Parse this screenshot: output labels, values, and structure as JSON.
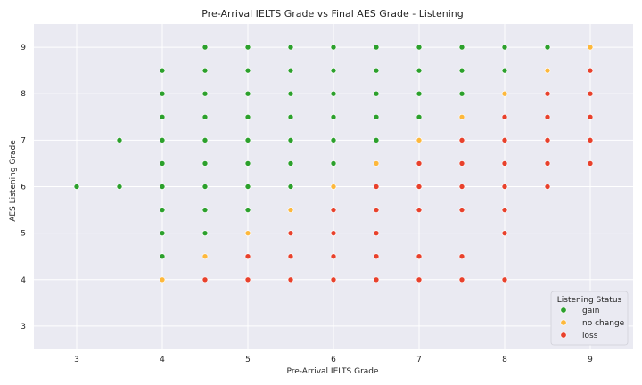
{
  "chart_data": {
    "type": "scatter",
    "title": "Pre-Arrival IELTS Grade vs Final AES Grade - Listening",
    "xlabel": "Pre-Arrival IELTS Grade",
    "ylabel": "AES Listening Grade",
    "xlim": [
      2.5,
      9.5
    ],
    "ylim": [
      2.5,
      9.5
    ],
    "xticks": [
      3,
      4,
      5,
      6,
      7,
      8,
      9
    ],
    "yticks": [
      3,
      4,
      5,
      6,
      7,
      8,
      9
    ],
    "grid": true,
    "background": "#eaeaf2",
    "legend": {
      "title": "Listening Status",
      "placement": "lower-right"
    },
    "series": [
      {
        "name": "gain",
        "color": "#2ca02c",
        "points": [
          [
            3,
            6
          ],
          [
            3.5,
            6
          ],
          [
            3.5,
            7
          ],
          [
            4,
            4.5
          ],
          [
            4,
            5
          ],
          [
            4,
            5.5
          ],
          [
            4,
            6
          ],
          [
            4,
            6.5
          ],
          [
            4,
            7
          ],
          [
            4,
            7.5
          ],
          [
            4,
            8
          ],
          [
            4,
            8.5
          ],
          [
            4.5,
            5
          ],
          [
            4.5,
            5.5
          ],
          [
            4.5,
            6
          ],
          [
            4.5,
            6.5
          ],
          [
            4.5,
            7
          ],
          [
            4.5,
            7.5
          ],
          [
            4.5,
            8
          ],
          [
            4.5,
            8.5
          ],
          [
            4.5,
            9
          ],
          [
            5,
            5.5
          ],
          [
            5,
            6
          ],
          [
            5,
            6.5
          ],
          [
            5,
            7
          ],
          [
            5,
            7.5
          ],
          [
            5,
            8
          ],
          [
            5,
            8.5
          ],
          [
            5,
            9
          ],
          [
            5.5,
            6
          ],
          [
            5.5,
            6.5
          ],
          [
            5.5,
            7
          ],
          [
            5.5,
            7.5
          ],
          [
            5.5,
            8
          ],
          [
            5.5,
            8.5
          ],
          [
            5.5,
            9
          ],
          [
            6,
            6.5
          ],
          [
            6,
            7
          ],
          [
            6,
            7.5
          ],
          [
            6,
            8
          ],
          [
            6,
            8.5
          ],
          [
            6,
            9
          ],
          [
            6.5,
            7
          ],
          [
            6.5,
            7.5
          ],
          [
            6.5,
            8
          ],
          [
            6.5,
            8.5
          ],
          [
            6.5,
            9
          ],
          [
            7,
            7.5
          ],
          [
            7,
            8
          ],
          [
            7,
            8.5
          ],
          [
            7,
            9
          ],
          [
            7.5,
            8
          ],
          [
            7.5,
            8.5
          ],
          [
            7.5,
            9
          ],
          [
            8,
            8.5
          ],
          [
            8,
            9
          ],
          [
            8.5,
            9
          ]
        ]
      },
      {
        "name": "no change",
        "color": "#fdb83c",
        "points": [
          [
            4,
            4
          ],
          [
            4.5,
            4.5
          ],
          [
            5,
            5
          ],
          [
            5.5,
            5.5
          ],
          [
            6,
            6
          ],
          [
            6.5,
            6.5
          ],
          [
            7,
            7
          ],
          [
            7.5,
            7.5
          ],
          [
            8,
            8
          ],
          [
            8.5,
            8.5
          ],
          [
            9,
            9
          ]
        ]
      },
      {
        "name": "loss",
        "color": "#e8412c",
        "points": [
          [
            4.5,
            4
          ],
          [
            5,
            4
          ],
          [
            5,
            4.5
          ],
          [
            5.5,
            4
          ],
          [
            5.5,
            4.5
          ],
          [
            5.5,
            5
          ],
          [
            6,
            4
          ],
          [
            6,
            4.5
          ],
          [
            6,
            5
          ],
          [
            6,
            5.5
          ],
          [
            6.5,
            4
          ],
          [
            6.5,
            4.5
          ],
          [
            6.5,
            5
          ],
          [
            6.5,
            5.5
          ],
          [
            6.5,
            6
          ],
          [
            7,
            4
          ],
          [
            7,
            4.5
          ],
          [
            7,
            5.5
          ],
          [
            7,
            6
          ],
          [
            7,
            6.5
          ],
          [
            7.5,
            4
          ],
          [
            7.5,
            4.5
          ],
          [
            7.5,
            5.5
          ],
          [
            7.5,
            6
          ],
          [
            7.5,
            6.5
          ],
          [
            7.5,
            7
          ],
          [
            8,
            4
          ],
          [
            8,
            5
          ],
          [
            8,
            5.5
          ],
          [
            8,
            6
          ],
          [
            8,
            6.5
          ],
          [
            8,
            7
          ],
          [
            8,
            7.5
          ],
          [
            8.5,
            6
          ],
          [
            8.5,
            6.5
          ],
          [
            8.5,
            7
          ],
          [
            8.5,
            7.5
          ],
          [
            8.5,
            8
          ],
          [
            9,
            6.5
          ],
          [
            9,
            7
          ],
          [
            9,
            7.5
          ],
          [
            9,
            8
          ],
          [
            9,
            8.5
          ]
        ]
      }
    ]
  }
}
